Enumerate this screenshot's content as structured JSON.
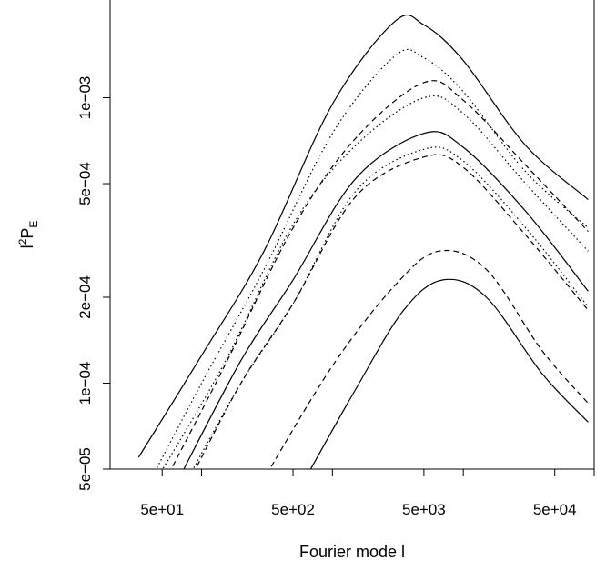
{
  "chart_data": {
    "type": "line",
    "title": "",
    "xlabel": "Fourier mode l",
    "ylabel": {
      "base": "l",
      "sup": "2",
      "mid": "P",
      "sub": "E"
    },
    "x_scale": "log",
    "y_scale": "log",
    "xlim": [
      20,
      100000
    ],
    "ylim": [
      5e-05,
      0.0022
    ],
    "x_ticks": [
      {
        "value": 50,
        "label": "5e+01"
      },
      {
        "value": 500,
        "label": "5e+02"
      },
      {
        "value": 5000,
        "label": "5e+03"
      },
      {
        "value": 50000,
        "label": "5e+04"
      }
    ],
    "x_minor_ticks": [
      100,
      1000,
      10000,
      100000
    ],
    "y_ticks": [
      {
        "value": 5e-05,
        "label": "5e−05"
      },
      {
        "value": 0.0001,
        "label": "1e−04"
      },
      {
        "value": 0.0002,
        "label": "2e−04"
      },
      {
        "value": 0.0005,
        "label": "5e−04"
      },
      {
        "value": 0.001,
        "label": "1e−03"
      }
    ],
    "grid": false,
    "legend": "none",
    "series": [
      {
        "style": "solid",
        "points": [
          [
            33,
            5.5e-05
          ],
          [
            100,
            0.000125
          ],
          [
            300,
            0.00029
          ],
          [
            1000,
            0.00095
          ],
          [
            3000,
            0.00185
          ],
          [
            5000,
            0.0018
          ],
          [
            10000,
            0.00135
          ],
          [
            30000,
            0.00068
          ],
          [
            90000,
            0.00044
          ]
        ]
      },
      {
        "style": "dotted",
        "points": [
          [
            40,
            4.5e-05
          ],
          [
            100,
            0.0001
          ],
          [
            300,
            0.00025
          ],
          [
            1000,
            0.00075
          ],
          [
            3000,
            0.0014
          ],
          [
            5000,
            0.00138
          ],
          [
            10000,
            0.00105
          ],
          [
            30000,
            0.00055
          ],
          [
            90000,
            0.00035
          ]
        ]
      },
      {
        "style": "dashed",
        "points": [
          [
            52,
            4.5e-05
          ],
          [
            150,
            0.000115
          ],
          [
            500,
            0.00035
          ],
          [
            1500,
            0.00072
          ],
          [
            5000,
            0.00113
          ],
          [
            10000,
            0.00098
          ],
          [
            30000,
            0.00058
          ],
          [
            90000,
            0.00034
          ]
        ]
      },
      {
        "style": "dotted",
        "points": [
          [
            44,
            4.5e-05
          ],
          [
            150,
            0.000118
          ],
          [
            500,
            0.00036
          ],
          [
            1500,
            0.00068
          ],
          [
            5000,
            0.001
          ],
          [
            10000,
            0.00088
          ],
          [
            30000,
            0.0005
          ],
          [
            90000,
            0.00029
          ]
        ]
      },
      {
        "style": "solid",
        "points": [
          [
            65,
            4.5e-05
          ],
          [
            200,
            0.00012
          ],
          [
            500,
            0.00023
          ],
          [
            1500,
            0.00052
          ],
          [
            5000,
            0.00075
          ],
          [
            10000,
            0.00067
          ],
          [
            30000,
            0.0004
          ],
          [
            90000,
            0.00021
          ]
        ]
      },
      {
        "style": "dotted",
        "points": [
          [
            76,
            4.5e-05
          ],
          [
            200,
            0.0001
          ],
          [
            500,
            0.00019
          ],
          [
            1500,
            0.00047
          ],
          [
            5000,
            0.00066
          ],
          [
            10000,
            0.0006
          ],
          [
            30000,
            0.00035
          ],
          [
            90000,
            0.000185
          ]
        ]
      },
      {
        "style": "dashed",
        "points": [
          [
            80,
            4.5e-05
          ],
          [
            200,
            0.0001
          ],
          [
            500,
            0.00019
          ],
          [
            1500,
            0.00045
          ],
          [
            5000,
            0.00062
          ],
          [
            10000,
            0.00057
          ],
          [
            30000,
            0.00033
          ],
          [
            90000,
            0.00018
          ]
        ]
      },
      {
        "style": "dashed",
        "points": [
          [
            290,
            4.5e-05
          ],
          [
            1000,
            0.000115
          ],
          [
            3000,
            0.00022
          ],
          [
            6500,
            0.00029
          ],
          [
            15000,
            0.00025
          ],
          [
            40000,
            0.00013
          ],
          [
            90000,
            8.5e-05
          ]
        ]
      },
      {
        "style": "solid",
        "points": [
          [
            600,
            4.5e-05
          ],
          [
            1500,
            9.5e-05
          ],
          [
            3500,
            0.00018
          ],
          [
            7000,
            0.00023
          ],
          [
            15000,
            0.0002
          ],
          [
            40000,
            0.000108
          ],
          [
            90000,
            7.3e-05
          ]
        ]
      }
    ]
  }
}
